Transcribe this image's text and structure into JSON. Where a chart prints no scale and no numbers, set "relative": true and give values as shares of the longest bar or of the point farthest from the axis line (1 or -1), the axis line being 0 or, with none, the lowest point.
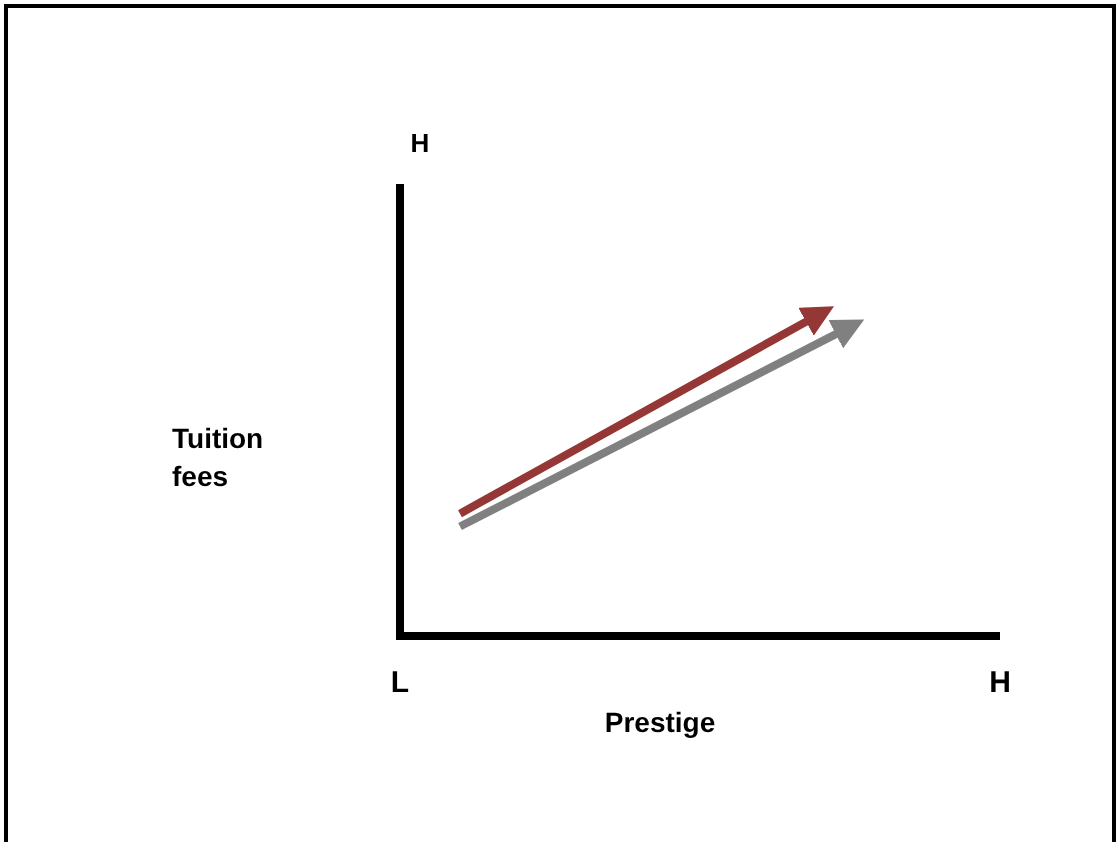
{
  "chart_data": {
    "type": "line",
    "relative": true,
    "xlabel": "Prestige",
    "ylabel": "Tuition fees",
    "annotations": [
      "H"
    ],
    "line_style": "solid",
    "categories": [
      "L",
      null,
      null,
      null,
      null,
      null,
      null,
      null,
      null,
      null,
      null,
      null,
      null,
      null,
      null,
      null,
      null,
      null,
      null,
      null,
      "H"
    ],
    "series": [
      {
        "color": "#953735",
        "values": [
          null,
          null,
          0.38,
          null,
          null,
          null,
          null,
          null,
          null,
          null,
          null,
          null,
          null,
          null,
          1,
          null,
          null,
          null,
          null,
          null,
          null
        ]
      },
      {
        "color": "#808080",
        "values": [
          null,
          null,
          0.34,
          null,
          null,
          null,
          null,
          null,
          null,
          null,
          null,
          null,
          null,
          null,
          null,
          0.96,
          null,
          null,
          null,
          null,
          null
        ]
      }
    ]
  }
}
